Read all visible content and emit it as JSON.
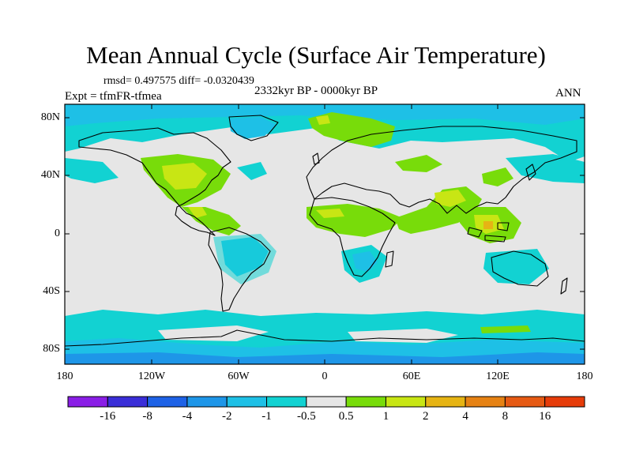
{
  "title": "Mean Annual Cycle (Surface Air Temperature)",
  "stats_line": "rmsd= 0.497575 diff= -0.0320439",
  "period": "2332kyr BP - 0000kyr BP",
  "experiment": "Expt = tfmFR-tfmea",
  "season": "ANN",
  "map": {
    "projection": "cylindrical equidistant",
    "lon_range": [
      -180,
      180
    ],
    "lat_range": [
      -90,
      90
    ],
    "lat_ticks": [
      "80N",
      "40N",
      "0",
      "40S",
      "80S"
    ],
    "lon_ticks": [
      "180",
      "120W",
      "60W",
      "0",
      "60E",
      "120E",
      "180"
    ]
  },
  "colorbar": {
    "labels": [
      "-16",
      "-8",
      "-4",
      "-2",
      "-1",
      "-0.5",
      "0.5",
      "1",
      "2",
      "4",
      "8",
      "16"
    ],
    "colors": [
      "#8a1ee6",
      "#3a2ed8",
      "#1e62e6",
      "#1e96e8",
      "#1ec0e6",
      "#12d2d2",
      "#e6e6e6",
      "#78dc0a",
      "#c8e614",
      "#e6b414",
      "#e68214",
      "#e65a14",
      "#e63c0a"
    ]
  }
}
